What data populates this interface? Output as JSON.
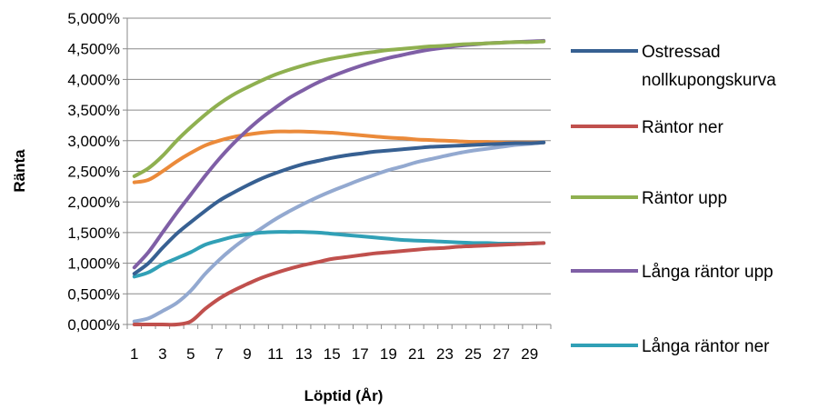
{
  "chart_data": {
    "type": "line",
    "ylabel": "Ränta",
    "xlabel": "Löptid (År)",
    "ylim": [
      0,
      5
    ],
    "y_ticks": [
      0,
      0.5,
      1,
      1.5,
      2,
      2.5,
      3,
      3.5,
      4,
      4.5,
      5
    ],
    "y_tick_labels": [
      "0,000%",
      "0,500%",
      "1,000%",
      "1,500%",
      "2,000%",
      "2,500%",
      "3,000%",
      "3,500%",
      "4,000%",
      "4,500%",
      "5,000%"
    ],
    "x": [
      1,
      2,
      3,
      4,
      5,
      6,
      7,
      8,
      9,
      10,
      11,
      12,
      13,
      14,
      15,
      16,
      17,
      18,
      19,
      20,
      21,
      22,
      23,
      24,
      25,
      26,
      27,
      28,
      29,
      30
    ],
    "x_tick_labels": [
      "1",
      "3",
      "5",
      "7",
      "9",
      "11",
      "13",
      "15",
      "17",
      "19",
      "21",
      "23",
      "25",
      "27",
      "29"
    ],
    "grid": true,
    "legend_position": "right",
    "series": [
      {
        "name": "Ostressad nollkupongskurva",
        "color": "#376092",
        "values": [
          0.83,
          1.0,
          1.25,
          1.48,
          1.67,
          1.85,
          2.02,
          2.15,
          2.27,
          2.38,
          2.47,
          2.55,
          2.62,
          2.67,
          2.72,
          2.76,
          2.79,
          2.82,
          2.84,
          2.86,
          2.88,
          2.9,
          2.91,
          2.92,
          2.93,
          2.94,
          2.95,
          2.96,
          2.96,
          2.97
        ]
      },
      {
        "name": "Räntor ner",
        "color": "#c0504d",
        "values": [
          0.0,
          0.0,
          0.0,
          0.0,
          0.05,
          0.25,
          0.42,
          0.55,
          0.66,
          0.76,
          0.84,
          0.91,
          0.97,
          1.02,
          1.07,
          1.1,
          1.13,
          1.16,
          1.18,
          1.2,
          1.22,
          1.24,
          1.25,
          1.27,
          1.28,
          1.29,
          1.3,
          1.31,
          1.32,
          1.33
        ]
      },
      {
        "name": "Räntor upp",
        "color": "#8fb050",
        "values": [
          2.42,
          2.55,
          2.75,
          3.0,
          3.22,
          3.42,
          3.6,
          3.75,
          3.87,
          3.98,
          4.08,
          4.16,
          4.23,
          4.29,
          4.34,
          4.38,
          4.42,
          4.45,
          4.48,
          4.5,
          4.52,
          4.54,
          4.55,
          4.57,
          4.58,
          4.59,
          4.6,
          4.61,
          4.61,
          4.62
        ]
      },
      {
        "name": "Långa räntor upp",
        "color": "#7f5fa6",
        "values": [
          0.93,
          1.18,
          1.5,
          1.82,
          2.12,
          2.42,
          2.7,
          2.95,
          3.17,
          3.37,
          3.54,
          3.7,
          3.83,
          3.95,
          4.05,
          4.14,
          4.22,
          4.29,
          4.35,
          4.4,
          4.45,
          4.49,
          4.52,
          4.55,
          4.57,
          4.59,
          4.6,
          4.61,
          4.62,
          4.63
        ]
      },
      {
        "name": "Långa räntor ner",
        "color": "#31a0b6",
        "values": [
          0.78,
          0.85,
          0.98,
          1.08,
          1.18,
          1.3,
          1.37,
          1.43,
          1.47,
          1.5,
          1.51,
          1.51,
          1.51,
          1.5,
          1.48,
          1.46,
          1.44,
          1.42,
          1.4,
          1.38,
          1.37,
          1.36,
          1.35,
          1.34,
          1.33,
          1.33,
          1.32,
          1.32,
          1.32,
          1.33
        ]
      },
      {
        "name": "",
        "color": "#eb8a3a",
        "values": [
          2.32,
          2.36,
          2.5,
          2.66,
          2.8,
          2.92,
          3.0,
          3.06,
          3.1,
          3.13,
          3.15,
          3.15,
          3.15,
          3.14,
          3.13,
          3.11,
          3.09,
          3.07,
          3.05,
          3.04,
          3.02,
          3.01,
          3.0,
          2.99,
          2.98,
          2.98,
          2.97,
          2.97,
          2.97,
          2.97
        ]
      },
      {
        "name": "",
        "color": "#93a9d0",
        "values": [
          0.05,
          0.1,
          0.22,
          0.35,
          0.55,
          0.82,
          1.05,
          1.25,
          1.42,
          1.57,
          1.72,
          1.85,
          1.97,
          2.08,
          2.18,
          2.27,
          2.36,
          2.44,
          2.52,
          2.58,
          2.65,
          2.7,
          2.75,
          2.8,
          2.84,
          2.87,
          2.9,
          2.93,
          2.95,
          2.97
        ]
      }
    ]
  }
}
